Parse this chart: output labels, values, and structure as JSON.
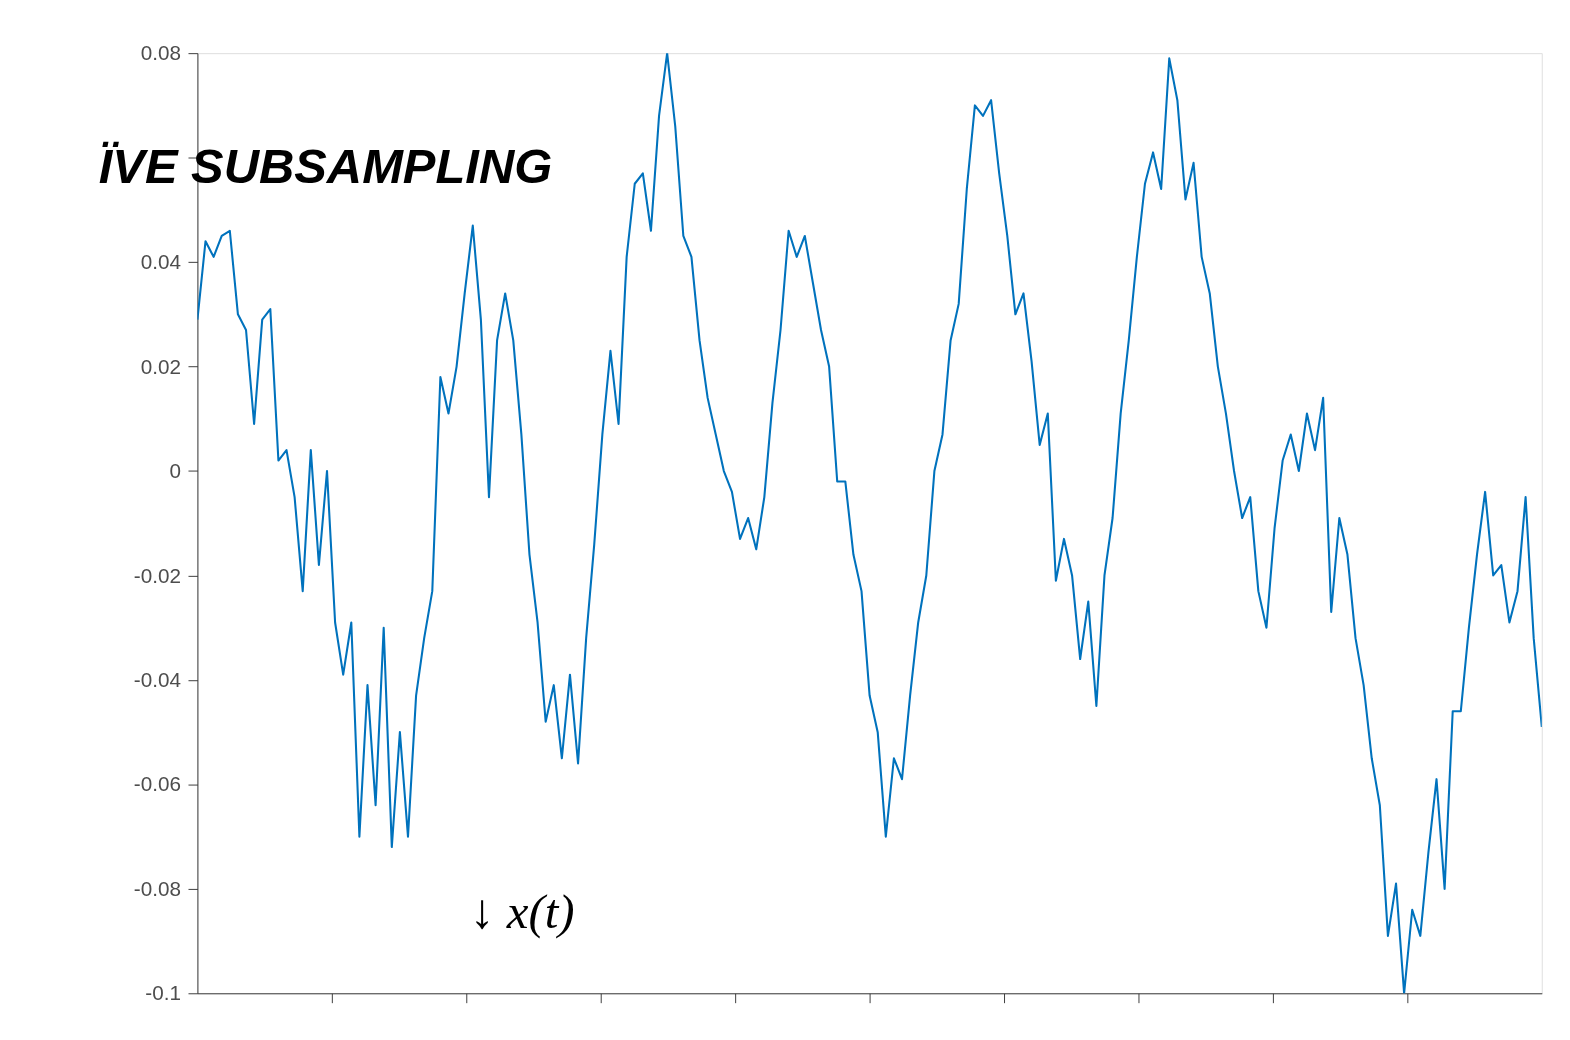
{
  "chart_data": {
    "type": "line",
    "annotations": [
      "ÏVE SUBSAMPLING",
      "↓ x(t)"
    ],
    "categories": [
      null,
      null,
      null,
      null,
      null,
      null,
      null,
      null,
      null,
      null,
      null,
      null,
      null,
      null,
      null,
      null,
      null,
      null,
      null,
      null,
      null,
      null,
      null,
      null,
      null,
      null,
      null,
      null,
      null,
      null,
      null,
      null,
      null,
      null,
      null,
      null,
      null,
      null,
      null,
      null,
      null,
      null,
      null,
      null,
      null,
      null,
      null,
      null,
      null,
      null,
      null,
      null,
      null,
      null,
      null,
      null,
      null,
      null,
      null,
      null,
      null,
      null,
      null,
      null,
      null,
      null,
      null,
      null,
      null,
      null,
      null,
      null,
      null,
      null,
      null,
      null,
      null,
      null,
      null,
      null,
      null,
      null,
      null,
      null,
      null,
      null,
      null,
      null,
      null,
      null,
      null,
      null,
      null,
      null,
      null,
      null,
      null,
      null,
      null,
      null,
      null,
      null,
      null,
      null,
      null,
      null,
      null,
      null,
      null,
      null,
      null,
      null,
      null,
      null,
      null,
      null,
      null,
      null,
      null,
      null,
      null,
      null,
      null,
      null,
      null,
      null,
      null,
      null,
      null,
      null,
      null,
      null,
      null,
      null,
      null,
      null,
      null,
      null,
      null,
      null,
      null,
      null,
      null,
      null,
      null,
      null,
      null,
      null,
      null,
      null,
      null,
      null,
      null,
      null,
      null,
      null,
      null,
      null,
      null,
      null,
      null,
      null,
      null,
      null,
      null,
      null,
      null
    ],
    "series": [
      {
        "color": "#0072bd",
        "values": [
          0.029,
          0.044,
          0.041,
          0.045,
          0.046,
          0.03,
          0.027,
          0.009,
          0.029,
          0.031,
          0.002,
          0.004,
          -0.005,
          -0.023,
          0.004,
          -0.018,
          0,
          -0.029,
          -0.039,
          -0.029,
          -0.07,
          -0.041,
          -0.064,
          -0.03,
          -0.072,
          -0.05,
          -0.07,
          -0.043,
          -0.032,
          -0.023,
          0.018,
          0.011,
          0.02,
          0.034,
          0.047,
          0.029,
          -0.005,
          0.025,
          0.034,
          0.025,
          0.007,
          -0.016,
          -0.029,
          -0.048,
          -0.041,
          -0.055,
          -0.039,
          -0.056,
          -0.032,
          -0.014,
          0.007,
          0.023,
          0.009,
          0.041,
          0.055,
          0.057,
          0.046,
          0.068,
          0.08,
          0.066,
          0.045,
          0.041,
          0.025,
          0.014,
          0.007,
          0,
          -0.004,
          -0.013,
          -0.009,
          -0.015,
          -0.005,
          0.013,
          0.027,
          0.046,
          0.041,
          0.045,
          0.036,
          0.027,
          0.02,
          -0.002,
          -0.002,
          -0.016,
          -0.023,
          -0.043,
          -0.05,
          -0.07,
          -0.055,
          -0.059,
          -0.043,
          -0.029,
          -0.02,
          0,
          0.007,
          0.025,
          0.032,
          0.054,
          0.07,
          0.068,
          0.071,
          0.057,
          0.045,
          0.03,
          0.034,
          0.021,
          0.005,
          0.011,
          -0.021,
          -0.013,
          -0.02,
          -0.036,
          -0.025,
          -0.045,
          -0.02,
          -0.009,
          0.011,
          0.025,
          0.041,
          0.055,
          0.061,
          0.054,
          0.079,
          0.071,
          0.052,
          0.059,
          0.041,
          0.034,
          0.02,
          0.011,
          0,
          -0.009,
          -0.005,
          -0.023,
          -0.03,
          -0.011,
          0.002,
          0.007,
          0,
          0.011,
          0.004,
          0.014,
          -0.027,
          -0.009,
          -0.016,
          -0.032,
          -0.041,
          -0.055,
          -0.064,
          -0.089,
          -0.079,
          -0.1,
          -0.084,
          -0.089,
          -0.073,
          -0.059,
          -0.08,
          -0.046,
          -0.046,
          -0.03,
          -0.016,
          -0.004,
          -0.02,
          -0.018,
          -0.029,
          -0.023,
          -0.005,
          -0.032,
          -0.049
        ]
      }
    ],
    "ylim": [
      -0.1,
      0.08
    ],
    "yticks": [
      -0.1,
      -0.08,
      -0.06,
      -0.04,
      -0.02,
      0,
      0.02,
      0.04,
      {
        "value": 0.06,
        "label": null
      },
      0.08
    ],
    "tick_labels": "y",
    "grid": false,
    "marker": "none",
    "line_style": "solid"
  }
}
